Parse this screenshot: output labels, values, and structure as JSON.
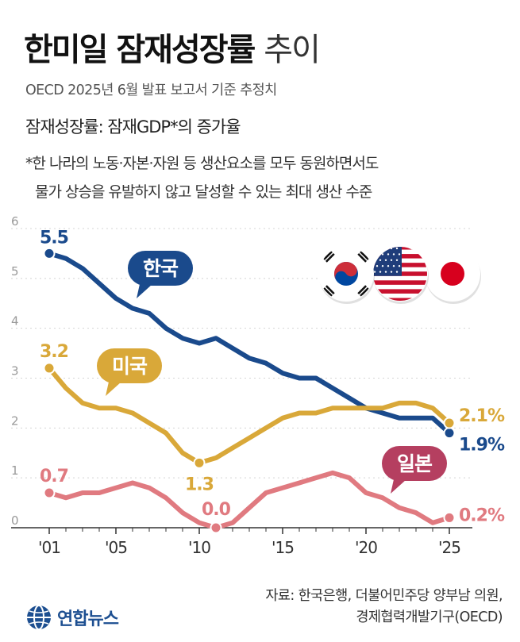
{
  "header": {
    "title_main": "한미일 잠재성장률",
    "title_sub": "추이",
    "source_line": "OECD 2025년 6월 발표 보고서 기준 추정치"
  },
  "definition": "잠재성장률: 잠재GDP*의 증가율",
  "note": {
    "line1": "*한 나라의 노동·자본·자원 등 생산요소를 모두 동원하면서도",
    "line2": "물가 상승을 유발하지 않고 달성할 수 있는 최대 생산 수준"
  },
  "chart_data": {
    "type": "line",
    "x": [
      2001,
      2002,
      2003,
      2004,
      2005,
      2006,
      2007,
      2008,
      2009,
      2010,
      2011,
      2012,
      2013,
      2014,
      2015,
      2016,
      2017,
      2018,
      2019,
      2020,
      2021,
      2022,
      2023,
      2024,
      2025
    ],
    "x_tick_values": [
      2001,
      2005,
      2010,
      2015,
      2020,
      2025
    ],
    "x_tick_labels": [
      "'01",
      "'05",
      "'10",
      "'15",
      "'20",
      "'25"
    ],
    "y_ticks": [
      "0",
      "1",
      "2",
      "3",
      "4",
      "5",
      "6"
    ],
    "ylim": [
      0,
      6
    ],
    "grid": true,
    "series": [
      {
        "name": "한국",
        "color": "#1a4a8c",
        "values": [
          5.5,
          5.4,
          5.2,
          4.9,
          4.6,
          4.4,
          4.3,
          4.0,
          3.8,
          3.7,
          3.8,
          3.6,
          3.4,
          3.3,
          3.1,
          3.0,
          3.0,
          2.8,
          2.6,
          2.4,
          2.3,
          2.2,
          2.2,
          2.2,
          1.9
        ],
        "label_start": "5.5",
        "label_end": "1.9%",
        "callout": "한국"
      },
      {
        "name": "미국",
        "color": "#d9a839",
        "values": [
          3.2,
          2.8,
          2.5,
          2.4,
          2.4,
          2.3,
          2.1,
          1.9,
          1.5,
          1.3,
          1.4,
          1.6,
          1.8,
          2.0,
          2.2,
          2.3,
          2.3,
          2.4,
          2.4,
          2.4,
          2.4,
          2.5,
          2.5,
          2.4,
          2.1
        ],
        "label_start": "3.2",
        "label_min": "1.3",
        "label_end": "2.1%",
        "callout": "미국"
      },
      {
        "name": "일본",
        "color": "#e07a80",
        "values": [
          0.7,
          0.6,
          0.7,
          0.7,
          0.8,
          0.9,
          0.8,
          0.6,
          0.3,
          0.1,
          0.0,
          0.1,
          0.4,
          0.7,
          0.8,
          0.9,
          1.0,
          1.1,
          1.0,
          0.7,
          0.6,
          0.4,
          0.3,
          0.1,
          0.2
        ],
        "label_start": "0.7",
        "label_min": "0.0",
        "label_end": "0.2%",
        "callout": "일본",
        "callout_color": "#b53f60"
      }
    ],
    "flags": [
      "south-korea-flag",
      "usa-flag",
      "japan-flag"
    ]
  },
  "credit": {
    "line1": "자료: 한국은행, 더불어민주당 양부남 의원,",
    "line2": "경제협력개발기구(OECD)"
  },
  "logo": {
    "text": "연합뉴스",
    "color": "#1d4f91"
  }
}
